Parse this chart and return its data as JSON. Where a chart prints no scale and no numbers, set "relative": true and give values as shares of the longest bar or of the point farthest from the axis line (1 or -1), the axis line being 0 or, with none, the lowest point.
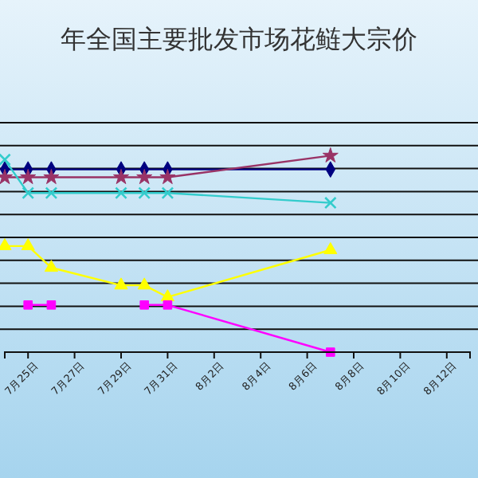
{
  "chart_data": {
    "type": "line",
    "title": "年全国主要批发市场花鲢大宗价",
    "relative": true,
    "grid": "y",
    "x": [
      "--07-24",
      "--07-25",
      "--07-26",
      "--07-29",
      "--07-30",
      "--07-31",
      "--08-07"
    ],
    "xlim": [
      "--07-24",
      "--08-13"
    ],
    "xticks": [
      {
        "value": "--07-25",
        "label": "7月25日"
      },
      {
        "value": "--07-27",
        "label": "7月27日"
      },
      {
        "value": "--07-29",
        "label": "7月29日"
      },
      {
        "value": "--07-31",
        "label": "7月31日"
      },
      {
        "value": "--08-02",
        "label": "8月2日"
      },
      {
        "value": "--08-04",
        "label": "8月4日"
      },
      {
        "value": "--08-06",
        "label": "8月6日"
      },
      {
        "value": "--08-08",
        "label": "8月8日"
      },
      {
        "value": "--08-10",
        "label": "8月10日"
      },
      {
        "value": "--08-12",
        "label": "8月12日"
      }
    ],
    "series": [
      {
        "color": "#000080",
        "marker": "diamond",
        "values": [
          0.93,
          0.93,
          0.93,
          0.93,
          0.93,
          0.93,
          0.93
        ]
      },
      {
        "color": "#993366",
        "marker": "star",
        "values": [
          0.89,
          0.89,
          0.89,
          0.89,
          0.89,
          0.89,
          1
        ]
      },
      {
        "color": "#33cccc",
        "marker": "cross",
        "values": [
          0.98,
          0.81,
          0.81,
          0.81,
          0.81,
          0.81,
          0.76
        ]
      },
      {
        "color": "#ffff00",
        "marker": "triangle",
        "values": [
          0.54,
          0.54,
          0.43,
          0.34,
          0.34,
          0.28,
          0.52
        ]
      },
      {
        "color": "#ff00ff",
        "marker": "square",
        "values": [
          null,
          0.24,
          0.24,
          null,
          0.24,
          0.24,
          0
        ]
      }
    ]
  }
}
